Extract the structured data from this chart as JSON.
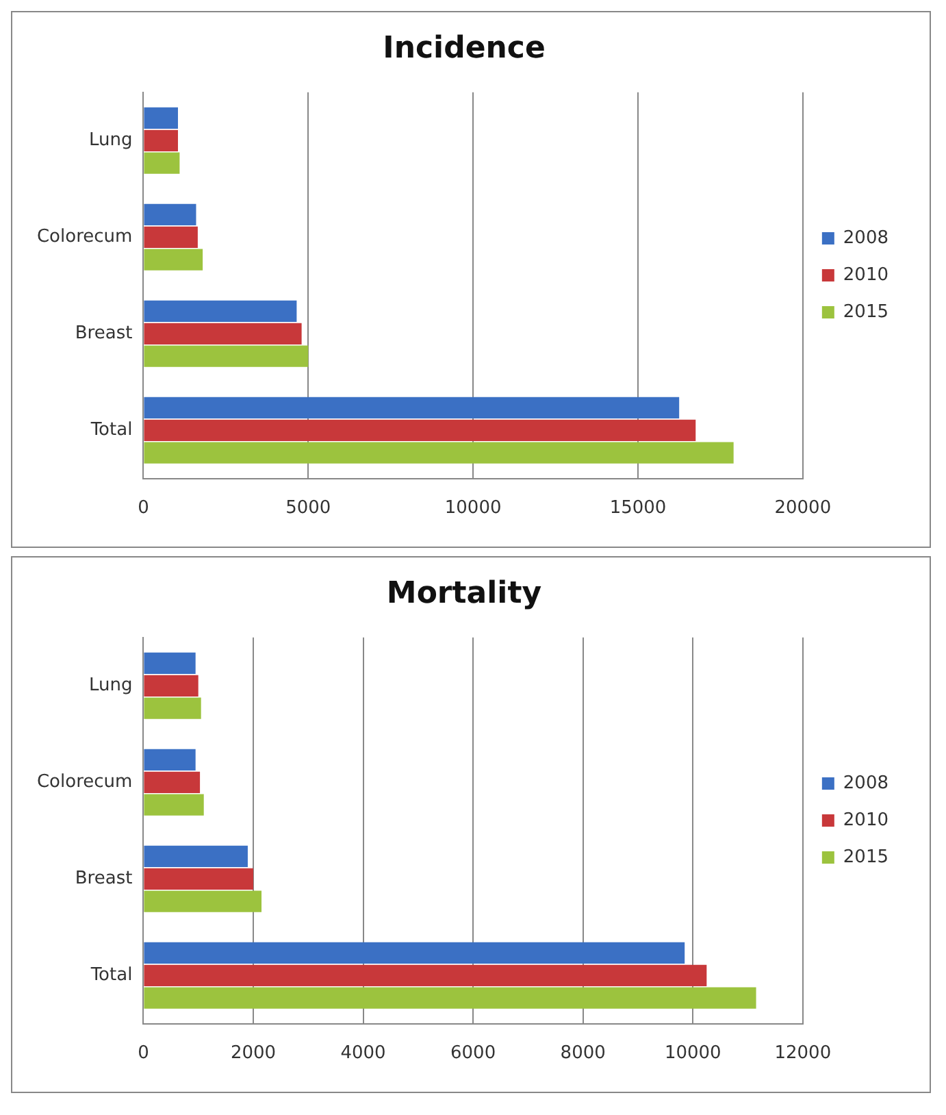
{
  "chart_data": [
    {
      "type": "bar",
      "title": "Incidence",
      "orientation": "horizontal",
      "categories": [
        "Lung",
        "Colorecum",
        "Breast",
        "Total"
      ],
      "series": [
        {
          "name": "2008",
          "color": "#3b70c4",
          "values": [
            1050,
            1600,
            4650,
            16250
          ]
        },
        {
          "name": "2010",
          "color": "#c8383a",
          "values": [
            1050,
            1650,
            4800,
            16750
          ]
        },
        {
          "name": "2015",
          "color": "#9cc33e",
          "values": [
            1100,
            1800,
            5000,
            17900
          ]
        }
      ],
      "xlim": [
        0,
        20000
      ],
      "xticks": [
        0,
        5000,
        10000,
        15000,
        20000
      ],
      "grid": "x",
      "legend": "right"
    },
    {
      "type": "bar",
      "title": "Mortality",
      "orientation": "horizontal",
      "categories": [
        "Lung",
        "Colorecum",
        "Breast",
        "Total"
      ],
      "series": [
        {
          "name": "2008",
          "color": "#3b70c4",
          "values": [
            950,
            950,
            1900,
            9850
          ]
        },
        {
          "name": "2010",
          "color": "#c8383a",
          "values": [
            1000,
            1030,
            2000,
            10250
          ]
        },
        {
          "name": "2015",
          "color": "#9cc33e",
          "values": [
            1050,
            1100,
            2150,
            11150
          ]
        }
      ],
      "xlim": [
        0,
        12000
      ],
      "xticks": [
        0,
        2000,
        4000,
        6000,
        8000,
        10000,
        12000
      ],
      "grid": "x",
      "legend": "right"
    }
  ]
}
